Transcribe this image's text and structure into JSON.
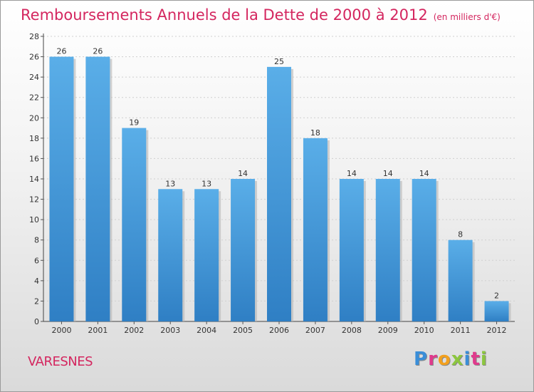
{
  "header": {
    "title": "Remboursements Annuels de la Dette de 2000 à 2012",
    "subtitle": "(en milliers d'€)"
  },
  "footer": {
    "place": "VARESNES",
    "logo": "Proxiti",
    "logo_colors": [
      "#3a8ed8",
      "#e03a8c",
      "#f2a01e",
      "#8cc63f",
      "#3a8ed8",
      "#e03a8c",
      "#8cc63f"
    ]
  },
  "chart_data": {
    "type": "bar",
    "categories": [
      "2000",
      "2001",
      "2002",
      "2003",
      "2004",
      "2005",
      "2006",
      "2007",
      "2008",
      "2009",
      "2010",
      "2011",
      "2012"
    ],
    "values": [
      26,
      26,
      19,
      13,
      13,
      14,
      25,
      18,
      14,
      14,
      14,
      8,
      2
    ],
    "title": "Remboursements Annuels de la Dette de 2000 à 2012",
    "subtitle": "(en milliers d'€)",
    "xlabel": "",
    "ylabel": "",
    "ylim": [
      0,
      28
    ],
    "yticks": [
      0,
      2,
      4,
      6,
      8,
      10,
      12,
      14,
      16,
      18,
      20,
      22,
      24,
      26,
      28
    ],
    "grid": true,
    "bar_color": "#4a9fe0"
  }
}
